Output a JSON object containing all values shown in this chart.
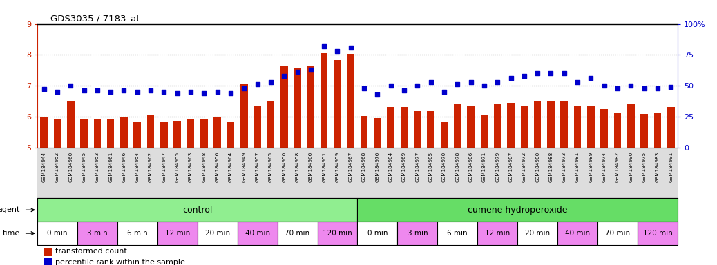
{
  "title": "GDS3035 / 7183_at",
  "bar_color": "#cc2200",
  "dot_color": "#0000cc",
  "ylim_left": [
    5,
    9
  ],
  "ylim_right": [
    0,
    100
  ],
  "yticks_left": [
    5,
    6,
    7,
    8,
    9
  ],
  "yticks_right": [
    0,
    25,
    50,
    75,
    100
  ],
  "samples": [
    "GSM184944",
    "GSM184952",
    "GSM184960",
    "GSM184945",
    "GSM184953",
    "GSM184961",
    "GSM184946",
    "GSM184954",
    "GSM184962",
    "GSM184947",
    "GSM184955",
    "GSM184963",
    "GSM184948",
    "GSM184956",
    "GSM184964",
    "GSM184949",
    "GSM184957",
    "GSM184965",
    "GSM184950",
    "GSM184958",
    "GSM184966",
    "GSM184951",
    "GSM184959",
    "GSM184967",
    "GSM184968",
    "GSM184976",
    "GSM184984",
    "GSM184969",
    "GSM184977",
    "GSM184985",
    "GSM184970",
    "GSM184978",
    "GSM184986",
    "GSM184971",
    "GSM184979",
    "GSM184987",
    "GSM184972",
    "GSM184980",
    "GSM184988",
    "GSM184973",
    "GSM184981",
    "GSM184989",
    "GSM184974",
    "GSM184982",
    "GSM184990",
    "GSM184975",
    "GSM184983",
    "GSM184991"
  ],
  "bar_values": [
    5.98,
    5.93,
    6.48,
    5.93,
    5.9,
    5.93,
    6.0,
    5.83,
    6.05,
    5.83,
    5.85,
    5.9,
    5.93,
    5.98,
    5.83,
    7.05,
    6.35,
    6.48,
    7.62,
    7.58,
    7.62,
    8.05,
    7.82,
    8.02,
    6.03,
    5.96,
    6.3,
    6.3,
    6.18,
    6.18,
    5.83,
    6.4,
    6.33,
    6.05,
    6.4,
    6.45,
    6.35,
    6.5,
    6.5,
    6.5,
    6.33,
    6.35,
    6.25,
    6.12,
    6.4,
    6.08,
    6.12,
    6.32
  ],
  "dot_values": [
    47,
    45,
    50,
    46,
    46,
    45,
    46,
    45,
    46,
    45,
    44,
    45,
    44,
    45,
    44,
    48,
    51,
    53,
    58,
    61,
    63,
    82,
    78,
    81,
    48,
    43,
    50,
    46,
    50,
    53,
    45,
    51,
    53,
    50,
    53,
    56,
    58,
    60,
    60,
    60,
    53,
    56,
    50,
    48,
    50,
    48,
    48,
    49
  ],
  "agent_groups": [
    {
      "label": "control",
      "start": 0,
      "end": 24,
      "color": "#90ee90"
    },
    {
      "label": "cumene hydroperoxide",
      "start": 24,
      "end": 48,
      "color": "#66dd66"
    }
  ],
  "time_groups": [
    {
      "label": "0 min",
      "start": 0,
      "end": 3,
      "color": "#ffffff"
    },
    {
      "label": "3 min",
      "start": 3,
      "end": 6,
      "color": "#ee88ee"
    },
    {
      "label": "6 min",
      "start": 6,
      "end": 9,
      "color": "#ffffff"
    },
    {
      "label": "12 min",
      "start": 9,
      "end": 12,
      "color": "#ee88ee"
    },
    {
      "label": "20 min",
      "start": 12,
      "end": 15,
      "color": "#ffffff"
    },
    {
      "label": "40 min",
      "start": 15,
      "end": 18,
      "color": "#ee88ee"
    },
    {
      "label": "70 min",
      "start": 18,
      "end": 21,
      "color": "#ffffff"
    },
    {
      "label": "120 min",
      "start": 21,
      "end": 24,
      "color": "#ee88ee"
    },
    {
      "label": "0 min",
      "start": 24,
      "end": 27,
      "color": "#ffffff"
    },
    {
      "label": "3 min",
      "start": 27,
      "end": 30,
      "color": "#ee88ee"
    },
    {
      "label": "6 min",
      "start": 30,
      "end": 33,
      "color": "#ffffff"
    },
    {
      "label": "12 min",
      "start": 33,
      "end": 36,
      "color": "#ee88ee"
    },
    {
      "label": "20 min",
      "start": 36,
      "end": 39,
      "color": "#ffffff"
    },
    {
      "label": "40 min",
      "start": 39,
      "end": 42,
      "color": "#ee88ee"
    },
    {
      "label": "70 min",
      "start": 42,
      "end": 45,
      "color": "#ffffff"
    },
    {
      "label": "120 min",
      "start": 45,
      "end": 48,
      "color": "#ee88ee"
    }
  ],
  "legend_bar_label": "transformed count",
  "legend_dot_label": "percentile rank within the sample",
  "agent_label": "agent",
  "time_label": "time",
  "bg_color": "#ffffff",
  "axis_tick_color_left": "#cc2200",
  "axis_tick_color_right": "#0000cc",
  "grid_dotted_lines": [
    6,
    7,
    8
  ]
}
